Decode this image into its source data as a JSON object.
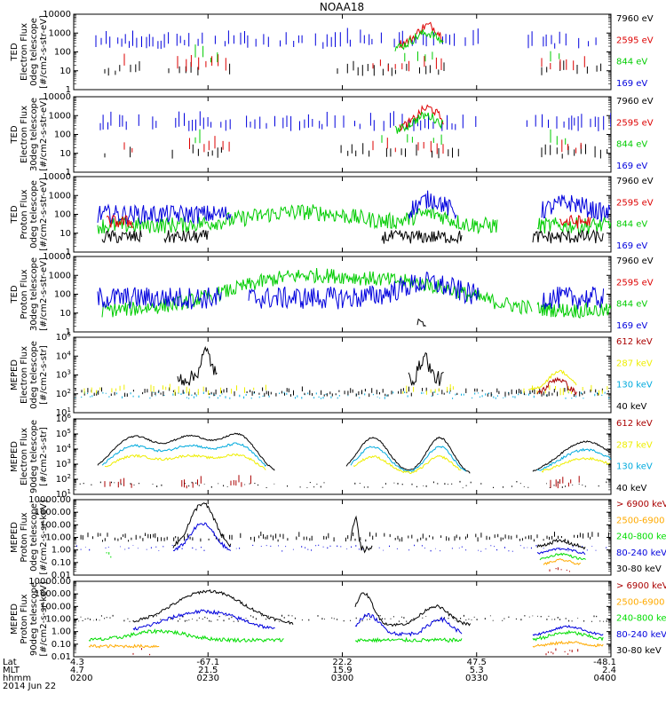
{
  "title": "NOAA18",
  "chart_data": [
    {
      "type": "line",
      "ylabel": [
        "TED",
        "Electron Flux",
        "0deg telescope",
        "[#/cm2-s-str-eV]"
      ],
      "yscale": "log",
      "yticks": [
        "10000",
        "1000",
        "100",
        "10",
        "1"
      ],
      "ylim": [
        1,
        10000
      ],
      "style": "sticks",
      "series": [
        {
          "name": "7960 eV",
          "color": "#000000"
        },
        {
          "name": "2595 eV",
          "color": "#dd0000"
        },
        {
          "name": "844 eV",
          "color": "#00cc00"
        },
        {
          "name": "169 eV",
          "color": "#0000dd"
        }
      ]
    },
    {
      "type": "line",
      "ylabel": [
        "TED",
        "Electron Flux",
        "30deg telescope",
        "[#/cm2-s-str-eV]"
      ],
      "yscale": "log",
      "yticks": [
        "10000",
        "1000",
        "100",
        "10",
        "1"
      ],
      "ylim": [
        1,
        10000
      ],
      "style": "sticks",
      "series": [
        {
          "name": "7960 eV",
          "color": "#000000"
        },
        {
          "name": "2595 eV",
          "color": "#dd0000"
        },
        {
          "name": "844 eV",
          "color": "#00cc00"
        },
        {
          "name": "169 eV",
          "color": "#0000dd"
        }
      ]
    },
    {
      "type": "line",
      "ylabel": [
        "TED",
        "Proton Flux",
        "0deg telescope",
        "[#/cm2-s-str-eV]"
      ],
      "yscale": "log",
      "yticks": [
        "10000",
        "1000",
        "100",
        "10",
        "1"
      ],
      "ylim": [
        1,
        10000
      ],
      "style": "noisy",
      "series": [
        {
          "name": "7960 eV",
          "color": "#000000"
        },
        {
          "name": "2595 eV",
          "color": "#dd0000"
        },
        {
          "name": "844 eV",
          "color": "#00cc00"
        },
        {
          "name": "169 eV",
          "color": "#0000dd"
        }
      ]
    },
    {
      "type": "line",
      "ylabel": [
        "TED",
        "Proton Flux",
        "30deg telescope",
        "[#/cm2-s-str-eV]"
      ],
      "yscale": "log",
      "yticks": [
        "10000",
        "1000",
        "100",
        "10",
        "1"
      ],
      "ylim": [
        1,
        10000
      ],
      "style": "noisy",
      "series": [
        {
          "name": "7960 eV",
          "color": "#000000"
        },
        {
          "name": "2595 eV",
          "color": "#dd0000"
        },
        {
          "name": "844 eV",
          "color": "#00cc00"
        },
        {
          "name": "169 eV",
          "color": "#0000dd"
        }
      ]
    },
    {
      "type": "line",
      "ylabel": [
        "MEPED",
        "Electron Flux",
        "0deg telescope",
        "[#/cm2-s-str]"
      ],
      "yscale": "log",
      "yticks": [
        "10^5",
        "10^4",
        "10^3",
        "10^2",
        "10^1"
      ],
      "ylim": [
        10,
        100000
      ],
      "style": "meped0",
      "series": [
        {
          "name": "612 keV",
          "color": "#aa0000"
        },
        {
          "name": "287 keV",
          "color": "#eeee00"
        },
        {
          "name": "130 keV",
          "color": "#00aadd"
        },
        {
          "name": "40 keV",
          "color": "#000000"
        }
      ]
    },
    {
      "type": "line",
      "ylabel": [
        "MEPED",
        "Electron Flux",
        "90deg telescope",
        "[#/cm2-s-str]"
      ],
      "yscale": "log",
      "yticks": [
        "10^6",
        "10^5",
        "10^4",
        "10^3",
        "10^2",
        "10^1"
      ],
      "ylim": [
        10,
        1000000
      ],
      "style": "meped90",
      "series": [
        {
          "name": "612 keV",
          "color": "#aa0000"
        },
        {
          "name": "287 keV",
          "color": "#eeee00"
        },
        {
          "name": "130 keV",
          "color": "#00aadd"
        },
        {
          "name": "40 keV",
          "color": "#000000"
        }
      ]
    },
    {
      "type": "line",
      "ylabel": [
        "MEPED",
        "Proton Flux",
        "0deg telescope",
        "[#/cm2-s-sr-keV]"
      ],
      "yscale": "log",
      "yticks": [
        "10000.00",
        "1000.00",
        "100.00",
        "10.00",
        "1.00",
        "0.10",
        "0.01"
      ],
      "ylim": [
        0.01,
        10000
      ],
      "style": "proton0",
      "series": [
        {
          "name": "> 6900 keV",
          "color": "#aa0000"
        },
        {
          "name": "2500-6900",
          "color": "#ffaa00"
        },
        {
          "name": "240-800 keV",
          "color": "#00dd00"
        },
        {
          "name": "80-240 keV",
          "color": "#0000dd"
        },
        {
          "name": "30-80 keV",
          "color": "#000000"
        }
      ]
    },
    {
      "type": "line",
      "ylabel": [
        "MEPED",
        "Proton Flux",
        "90deg telescope",
        "[#/cm2-s-sr-keV]"
      ],
      "yscale": "log",
      "yticks": [
        "10000.00",
        "1000.00",
        "100.00",
        "10.00",
        "1.00",
        "0.10",
        "0.01"
      ],
      "ylim": [
        0.01,
        10000
      ],
      "style": "proton90",
      "series": [
        {
          "name": "> 6900 keV",
          "color": "#aa0000"
        },
        {
          "name": "2500-6900",
          "color": "#ffaa00"
        },
        {
          "name": "240-800 keV",
          "color": "#00dd00"
        },
        {
          "name": "80-240 keV",
          "color": "#0000dd"
        },
        {
          "name": "30-80 keV",
          "color": "#000000"
        }
      ]
    }
  ],
  "xaxis": {
    "row_labels": [
      "Lat",
      "MLT",
      "hhmm",
      "2014 Jun 22"
    ],
    "ticks": [
      {
        "lat": "4.3",
        "mlt": "4.7",
        "time": "0200"
      },
      {
        "lat": "-67.1",
        "mlt": "21.5",
        "time": "0230"
      },
      {
        "lat": "22.2",
        "mlt": "15.9",
        "time": "0300"
      },
      {
        "lat": "47.5",
        "mlt": "5.3",
        "time": "0330"
      },
      {
        "lat": "-48.1",
        "mlt": "2.4",
        "time": "0400"
      }
    ]
  }
}
